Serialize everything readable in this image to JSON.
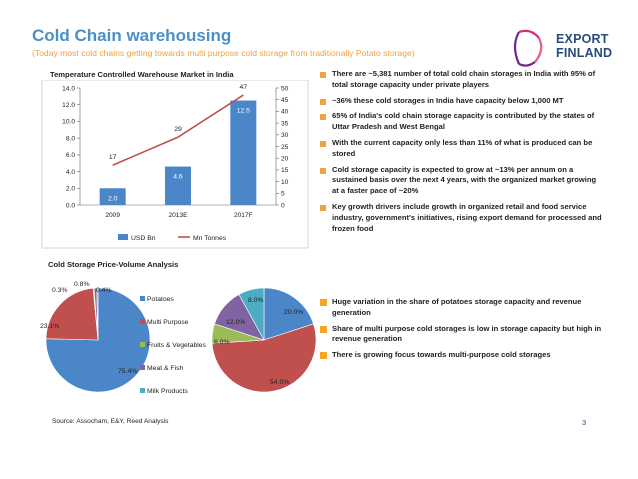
{
  "header": {
    "title": "Cold Chain warehousing",
    "subtitle": "(Today most cold chains getting towards multi purpose cold storage from traditionally Potato storage)"
  },
  "logo": {
    "line1": "EXPORT",
    "line2": "FINLAND",
    "accent_colors": [
      "#6a2a8a",
      "#c8347a",
      "#e85a8a"
    ]
  },
  "charts": {
    "market_title": "Temperature Controlled Warehouse Market in India",
    "price_volume_title": "Cold Storage Price-Volume Analysis"
  },
  "chart_data": [
    {
      "type": "bar",
      "title": "Temperature Controlled Warehouse Market in India",
      "categories": [
        "2009",
        "2013E",
        "2017F"
      ],
      "series": [
        {
          "name": "USD Bn",
          "values": [
            2.0,
            4.6,
            12.5
          ],
          "color": "#4a86c8",
          "axis": "left"
        },
        {
          "name": "Mn Tonnes",
          "values": [
            17,
            29,
            47
          ],
          "color": "#c0504d",
          "axis": "right",
          "type": "line"
        }
      ],
      "ylim": [
        0,
        14
      ],
      "yticks": [
        "0.0",
        "2.0",
        "4.0",
        "6.0",
        "8.0",
        "10.0",
        "12.0",
        "14.0"
      ],
      "y2lim": [
        0,
        50
      ],
      "y2ticks": [
        "0",
        "5",
        "10",
        "15",
        "20",
        "25",
        "30",
        "35",
        "40",
        "45",
        "50"
      ],
      "legend": "bottom"
    },
    {
      "type": "pie",
      "title": "Cold Storage Price-Volume Analysis",
      "slices": [
        {
          "name": "Potatoes",
          "value": 75.4,
          "label": "75.4%",
          "color": "#4a86c8"
        },
        {
          "name": "Multi Purpose",
          "value": 23.1,
          "label": "23.1%",
          "color": "#c0504d"
        },
        {
          "name": "Fruits & Vegetables",
          "value": 0.3,
          "label": "0.3%",
          "color": "#9bbb59"
        },
        {
          "name": "Meat & Fish",
          "value": 0.8,
          "label": "0.8%",
          "color": "#8064a2"
        },
        {
          "name": "Milk Products",
          "value": 0.4,
          "label": "0.4%",
          "color": "#4bacc6"
        }
      ],
      "legend": "right"
    },
    {
      "type": "pie",
      "slices": [
        {
          "name": "Potatoes",
          "value": 20.0,
          "label": "20.0%",
          "color": "#4a86c8"
        },
        {
          "name": "Multi Purpose",
          "value": 54.0,
          "label": "54.0%",
          "color": "#c0504d"
        },
        {
          "name": "Fruits & Vegetables",
          "value": 6.0,
          "label": "6.0%",
          "color": "#9bbb59"
        },
        {
          "name": "Meat & Fish",
          "value": 12.0,
          "label": "12.0%",
          "color": "#8064a2"
        },
        {
          "name": "Milk Products",
          "value": 8.0,
          "label": "8.0%",
          "color": "#4bacc6"
        }
      ]
    }
  ],
  "bullets_top": [
    "There are ~5,381 number of total cold chain storages in India with 95% of total storage capacity under private players",
    "~36% these cold storages in India have capacity below 1,000 MT",
    "65% of India's cold chain storage capacity is contributed by the states of Uttar Pradesh and West Bengal",
    "With the current capacity only less than 11% of what is produced can be stored",
    "Cold storage capacity is expected to grow at ~13% per annum on a sustained basis over the next 4 years, with the organized market growing at a faster pace of ~20%",
    "Key growth drivers include growth in organized retail and food service industry, government's initiatives, rising export demand for processed and frozen food"
  ],
  "bullets_bottom": [
    "Huge variation in the share of potatoes storage capacity and revenue generation",
    "Share of multi purpose cold storages is low in storage capacity but high in revenue generation",
    "There is growing focus towards multi-purpose cold storages"
  ],
  "footer": {
    "source": "Source: Assocham, E&Y, Reed Analysis",
    "page": "3"
  }
}
